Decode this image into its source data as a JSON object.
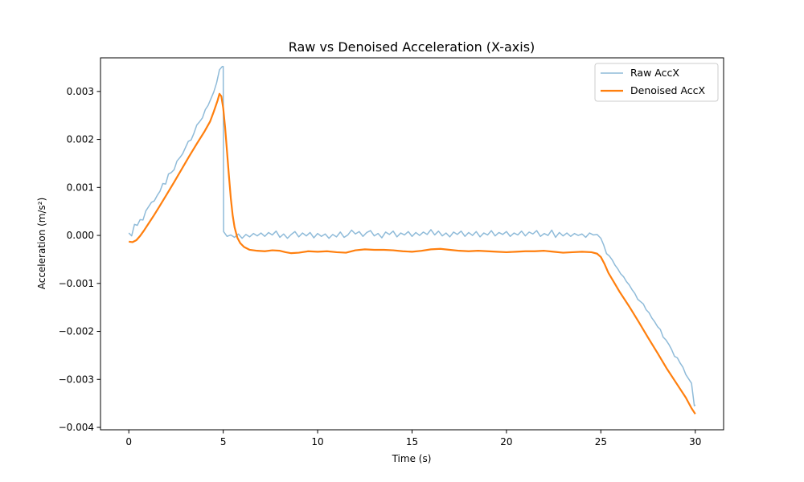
{
  "chart_data": {
    "type": "line",
    "title": "Raw vs Denoised Acceleration (X-axis)",
    "xlabel": "Time (s)",
    "ylabel": "Acceleration (m/s²)",
    "xlim": [
      -1.5,
      31.5
    ],
    "ylim": [
      -0.00405,
      0.0037
    ],
    "grid": false,
    "legend_position": "top-right",
    "x_ticks": [
      {
        "value": 0,
        "label": "0"
      },
      {
        "value": 5,
        "label": "5"
      },
      {
        "value": 10,
        "label": "10"
      },
      {
        "value": 15,
        "label": "15"
      },
      {
        "value": 20,
        "label": "20"
      },
      {
        "value": 25,
        "label": "25"
      },
      {
        "value": 30,
        "label": "30"
      }
    ],
    "y_ticks": [
      {
        "value": 0.003,
        "label": "0.003"
      },
      {
        "value": 0.002,
        "label": "0.002"
      },
      {
        "value": 0.001,
        "label": "0.001"
      },
      {
        "value": 0.0,
        "label": "0.000"
      },
      {
        "value": -0.001,
        "label": "−0.001"
      },
      {
        "value": -0.002,
        "label": "−0.002"
      },
      {
        "value": -0.003,
        "label": "−0.003"
      },
      {
        "value": -0.004,
        "label": "−0.004"
      }
    ],
    "series": [
      {
        "name": "Raw AccX",
        "color": "#1f77b4",
        "opacity": 0.5,
        "points": [
          [
            0.0,
            5e-05
          ],
          [
            0.15,
            -1e-05
          ],
          [
            0.3,
            0.00023
          ],
          [
            0.45,
            0.00021
          ],
          [
            0.6,
            0.00033
          ],
          [
            0.75,
            0.00032
          ],
          [
            0.9,
            0.00051
          ],
          [
            1.05,
            0.0006
          ],
          [
            1.2,
            0.00069
          ],
          [
            1.35,
            0.00072
          ],
          [
            1.5,
            0.00083
          ],
          [
            1.65,
            0.00092
          ],
          [
            1.8,
            0.00108
          ],
          [
            1.95,
            0.00107
          ],
          [
            2.1,
            0.00128
          ],
          [
            2.25,
            0.00131
          ],
          [
            2.4,
            0.00137
          ],
          [
            2.55,
            0.00155
          ],
          [
            2.7,
            0.00162
          ],
          [
            2.85,
            0.0017
          ],
          [
            3.0,
            0.00183
          ],
          [
            3.15,
            0.00196
          ],
          [
            3.3,
            0.00199
          ],
          [
            3.45,
            0.00213
          ],
          [
            3.6,
            0.0023
          ],
          [
            3.75,
            0.00237
          ],
          [
            3.9,
            0.00245
          ],
          [
            4.05,
            0.00262
          ],
          [
            4.2,
            0.00271
          ],
          [
            4.35,
            0.00285
          ],
          [
            4.5,
            0.00299
          ],
          [
            4.65,
            0.00318
          ],
          [
            4.8,
            0.00345
          ],
          [
            4.95,
            0.00352
          ],
          [
            5.0,
            0.00352
          ],
          [
            5.02,
            8e-05
          ],
          [
            5.2,
            -2e-05
          ],
          [
            5.4,
            1e-05
          ],
          [
            5.6,
            -4e-05
          ],
          [
            5.8,
            3e-05
          ],
          [
            6.0,
            -6e-05
          ],
          [
            6.2,
            2e-05
          ],
          [
            6.4,
            -3e-05
          ],
          [
            6.6,
            4e-05
          ],
          [
            6.8,
            -1e-05
          ],
          [
            7.0,
            5e-05
          ],
          [
            7.2,
            -2e-05
          ],
          [
            7.4,
            6e-05
          ],
          [
            7.6,
            1e-05
          ],
          [
            7.8,
            9e-05
          ],
          [
            8.0,
            -4e-05
          ],
          [
            8.2,
            3e-05
          ],
          [
            8.4,
            -6e-05
          ],
          [
            8.6,
            2e-05
          ],
          [
            8.8,
            8e-05
          ],
          [
            9.0,
            -3e-05
          ],
          [
            9.2,
            5e-05
          ],
          [
            9.4,
            -1e-05
          ],
          [
            9.6,
            6e-05
          ],
          [
            9.8,
            -5e-05
          ],
          [
            10.0,
            4e-05
          ],
          [
            10.2,
            -2e-05
          ],
          [
            10.4,
            3e-05
          ],
          [
            10.6,
            -6e-05
          ],
          [
            10.8,
            2e-05
          ],
          [
            11.0,
            -3e-05
          ],
          [
            11.2,
            7e-05
          ],
          [
            11.4,
            -4e-05
          ],
          [
            11.6,
            1e-05
          ],
          [
            11.8,
            0.00011
          ],
          [
            12.0,
            3e-05
          ],
          [
            12.2,
            8e-05
          ],
          [
            12.4,
            -2e-05
          ],
          [
            12.6,
            6e-05
          ],
          [
            12.8,
            0.0001
          ],
          [
            13.0,
            -1e-05
          ],
          [
            13.2,
            4e-05
          ],
          [
            13.4,
            -5e-05
          ],
          [
            13.6,
            7e-05
          ],
          [
            13.8,
            2e-05
          ],
          [
            14.0,
            9e-05
          ],
          [
            14.2,
            -3e-05
          ],
          [
            14.4,
            5e-05
          ],
          [
            14.6,
            1e-05
          ],
          [
            14.8,
            8e-05
          ],
          [
            15.0,
            -2e-05
          ],
          [
            15.2,
            6e-05
          ],
          [
            15.4,
            0.0
          ],
          [
            15.6,
            7e-05
          ],
          [
            15.8,
            2e-05
          ],
          [
            16.0,
            0.00012
          ],
          [
            16.2,
            1e-05
          ],
          [
            16.4,
            9e-05
          ],
          [
            16.6,
            -1e-05
          ],
          [
            16.8,
            5e-05
          ],
          [
            17.0,
            -3e-05
          ],
          [
            17.2,
            7e-05
          ],
          [
            17.4,
            2e-05
          ],
          [
            17.6,
            9e-05
          ],
          [
            17.8,
            -2e-05
          ],
          [
            18.0,
            6e-05
          ],
          [
            18.2,
            0.0
          ],
          [
            18.4,
            8e-05
          ],
          [
            18.6,
            -3e-05
          ],
          [
            18.8,
            5e-05
          ],
          [
            19.0,
            1e-05
          ],
          [
            19.2,
            0.0001
          ],
          [
            19.4,
            -1e-05
          ],
          [
            19.6,
            6e-05
          ],
          [
            19.8,
            2e-05
          ],
          [
            20.0,
            8e-05
          ],
          [
            20.2,
            -2e-05
          ],
          [
            20.4,
            5e-05
          ],
          [
            20.6,
            1e-05
          ],
          [
            20.8,
            9e-05
          ],
          [
            21.0,
            -1e-05
          ],
          [
            21.2,
            7e-05
          ],
          [
            21.4,
            3e-05
          ],
          [
            21.6,
            0.0001
          ],
          [
            21.8,
            -2e-05
          ],
          [
            22.0,
            4e-05
          ],
          [
            22.2,
            0.0
          ],
          [
            22.4,
            0.00011
          ],
          [
            22.6,
            -4e-05
          ],
          [
            22.8,
            6e-05
          ],
          [
            23.0,
            -1e-05
          ],
          [
            23.2,
            5e-05
          ],
          [
            23.4,
            -2e-05
          ],
          [
            23.6,
            4e-05
          ],
          [
            23.8,
            0.0
          ],
          [
            24.0,
            3e-05
          ],
          [
            24.2,
            -4e-05
          ],
          [
            24.4,
            5e-05
          ],
          [
            24.6,
            1e-05
          ],
          [
            24.8,
            2e-05
          ],
          [
            25.0,
            -6e-05
          ],
          [
            25.15,
            -0.0002
          ],
          [
            25.3,
            -0.00038
          ],
          [
            25.45,
            -0.00043
          ],
          [
            25.6,
            -0.00051
          ],
          [
            25.75,
            -0.00062
          ],
          [
            25.9,
            -0.0007
          ],
          [
            26.05,
            -0.0008
          ],
          [
            26.2,
            -0.00086
          ],
          [
            26.35,
            -0.00096
          ],
          [
            26.5,
            -0.00103
          ],
          [
            26.65,
            -0.00113
          ],
          [
            26.8,
            -0.00121
          ],
          [
            26.95,
            -0.00133
          ],
          [
            27.1,
            -0.00138
          ],
          [
            27.25,
            -0.00143
          ],
          [
            27.4,
            -0.00155
          ],
          [
            27.55,
            -0.00161
          ],
          [
            27.7,
            -0.00172
          ],
          [
            27.85,
            -0.0018
          ],
          [
            28.0,
            -0.0019
          ],
          [
            28.15,
            -0.00196
          ],
          [
            28.3,
            -0.00212
          ],
          [
            28.45,
            -0.00218
          ],
          [
            28.6,
            -0.00227
          ],
          [
            28.75,
            -0.00238
          ],
          [
            28.9,
            -0.00252
          ],
          [
            29.05,
            -0.00255
          ],
          [
            29.2,
            -0.00266
          ],
          [
            29.35,
            -0.00275
          ],
          [
            29.5,
            -0.0029
          ],
          [
            29.65,
            -0.00299
          ],
          [
            29.8,
            -0.00308
          ],
          [
            29.95,
            -0.00355
          ],
          [
            30.0,
            -0.00353
          ]
        ]
      },
      {
        "name": "Denoised AccX",
        "color": "#ff7f0e",
        "opacity": 1,
        "points": [
          [
            0.0,
            -0.00013
          ],
          [
            0.2,
            -0.00014
          ],
          [
            0.4,
            -0.0001
          ],
          [
            0.6,
            -1e-05
          ],
          [
            0.8,
            0.0001
          ],
          [
            1.0,
            0.00022
          ],
          [
            1.3,
            0.0004
          ],
          [
            1.6,
            0.00059
          ],
          [
            2.0,
            0.00085
          ],
          [
            2.4,
            0.00111
          ],
          [
            2.8,
            0.00138
          ],
          [
            3.2,
            0.00165
          ],
          [
            3.6,
            0.00191
          ],
          [
            4.0,
            0.00216
          ],
          [
            4.3,
            0.00237
          ],
          [
            4.5,
            0.00258
          ],
          [
            4.7,
            0.00281
          ],
          [
            4.8,
            0.00295
          ],
          [
            4.9,
            0.0029
          ],
          [
            5.0,
            0.00265
          ],
          [
            5.1,
            0.00225
          ],
          [
            5.2,
            0.00175
          ],
          [
            5.3,
            0.00125
          ],
          [
            5.4,
            0.00078
          ],
          [
            5.5,
            0.00042
          ],
          [
            5.6,
            0.00017
          ],
          [
            5.75,
            -5e-05
          ],
          [
            5.9,
            -0.00016
          ],
          [
            6.1,
            -0.00024
          ],
          [
            6.4,
            -0.0003
          ],
          [
            6.8,
            -0.00032
          ],
          [
            7.2,
            -0.00033
          ],
          [
            7.6,
            -0.00031
          ],
          [
            8.0,
            -0.00032
          ],
          [
            8.3,
            -0.00035
          ],
          [
            8.6,
            -0.00037
          ],
          [
            9.0,
            -0.00036
          ],
          [
            9.5,
            -0.00033
          ],
          [
            10.0,
            -0.00034
          ],
          [
            10.5,
            -0.00033
          ],
          [
            11.0,
            -0.00035
          ],
          [
            11.5,
            -0.00036
          ],
          [
            12.0,
            -0.00031
          ],
          [
            12.5,
            -0.00029
          ],
          [
            13.0,
            -0.0003
          ],
          [
            13.5,
            -0.0003
          ],
          [
            14.0,
            -0.00031
          ],
          [
            14.5,
            -0.00033
          ],
          [
            15.0,
            -0.00034
          ],
          [
            15.5,
            -0.00032
          ],
          [
            16.0,
            -0.00029
          ],
          [
            16.5,
            -0.00028
          ],
          [
            17.0,
            -0.0003
          ],
          [
            17.5,
            -0.00032
          ],
          [
            18.0,
            -0.00033
          ],
          [
            18.5,
            -0.00032
          ],
          [
            19.0,
            -0.00033
          ],
          [
            19.5,
            -0.00034
          ],
          [
            20.0,
            -0.00035
          ],
          [
            20.5,
            -0.00034
          ],
          [
            21.0,
            -0.00033
          ],
          [
            21.5,
            -0.00033
          ],
          [
            22.0,
            -0.00032
          ],
          [
            22.5,
            -0.00034
          ],
          [
            23.0,
            -0.00036
          ],
          [
            23.5,
            -0.00035
          ],
          [
            24.0,
            -0.00034
          ],
          [
            24.5,
            -0.00035
          ],
          [
            24.8,
            -0.00038
          ],
          [
            25.0,
            -0.00045
          ],
          [
            25.2,
            -0.0006
          ],
          [
            25.4,
            -0.00078
          ],
          [
            25.7,
            -0.00098
          ],
          [
            26.0,
            -0.00118
          ],
          [
            26.5,
            -0.00148
          ],
          [
            27.0,
            -0.0018
          ],
          [
            27.5,
            -0.00213
          ],
          [
            28.0,
            -0.00245
          ],
          [
            28.5,
            -0.00278
          ],
          [
            29.0,
            -0.00308
          ],
          [
            29.5,
            -0.00338
          ],
          [
            29.8,
            -0.0036
          ],
          [
            30.0,
            -0.00372
          ]
        ]
      }
    ]
  }
}
